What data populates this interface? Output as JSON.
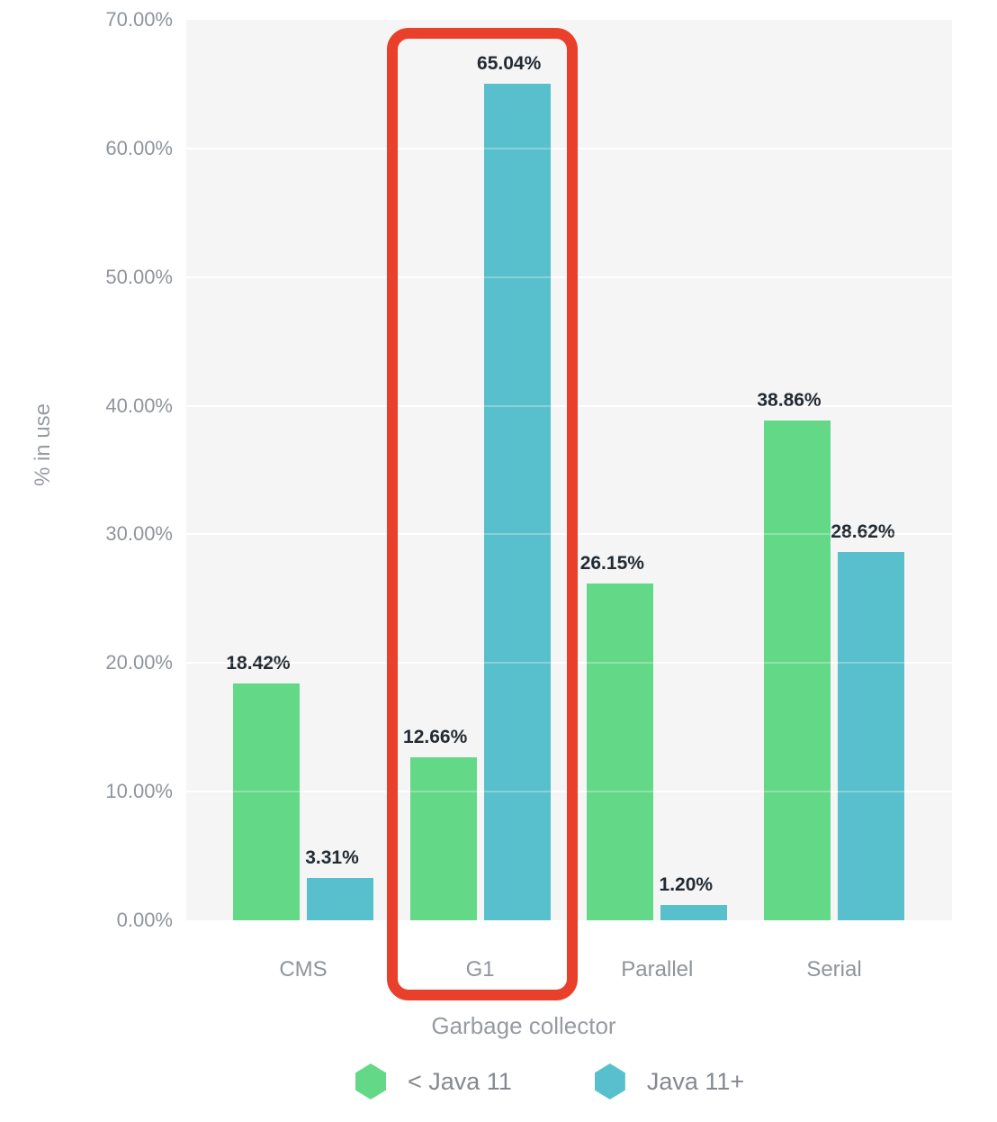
{
  "chart_data": {
    "type": "bar",
    "title": "",
    "categories": [
      "CMS",
      "G1",
      "Parallel",
      "Serial"
    ],
    "series": [
      {
        "name": "< Java 11",
        "color": "#63d987",
        "values": [
          18.42,
          12.66,
          26.15,
          38.86
        ],
        "labels": [
          "18.42%",
          "12.66%",
          "26.15%",
          "38.86%"
        ]
      },
      {
        "name": "Java 11+",
        "color": "#58c0cc",
        "values": [
          3.31,
          65.04,
          1.2,
          28.62
        ],
        "labels": [
          "3.31%",
          "65.04%",
          "1.20%",
          "28.62%"
        ]
      }
    ],
    "xlabel": "Garbage collector",
    "ylabel": "% in use",
    "ylim": [
      0,
      70
    ],
    "yticks": [
      "70.00%",
      "60.00%",
      "50.00%",
      "40.00%",
      "30.00%",
      "20.00%",
      "10.00%",
      "0.00%"
    ],
    "grid": true,
    "legend_position": "bottom",
    "plot_background": "#f5f5f6",
    "annotation": {
      "type": "highlight-box",
      "target_category": "G1",
      "color": "#e8402a"
    }
  }
}
